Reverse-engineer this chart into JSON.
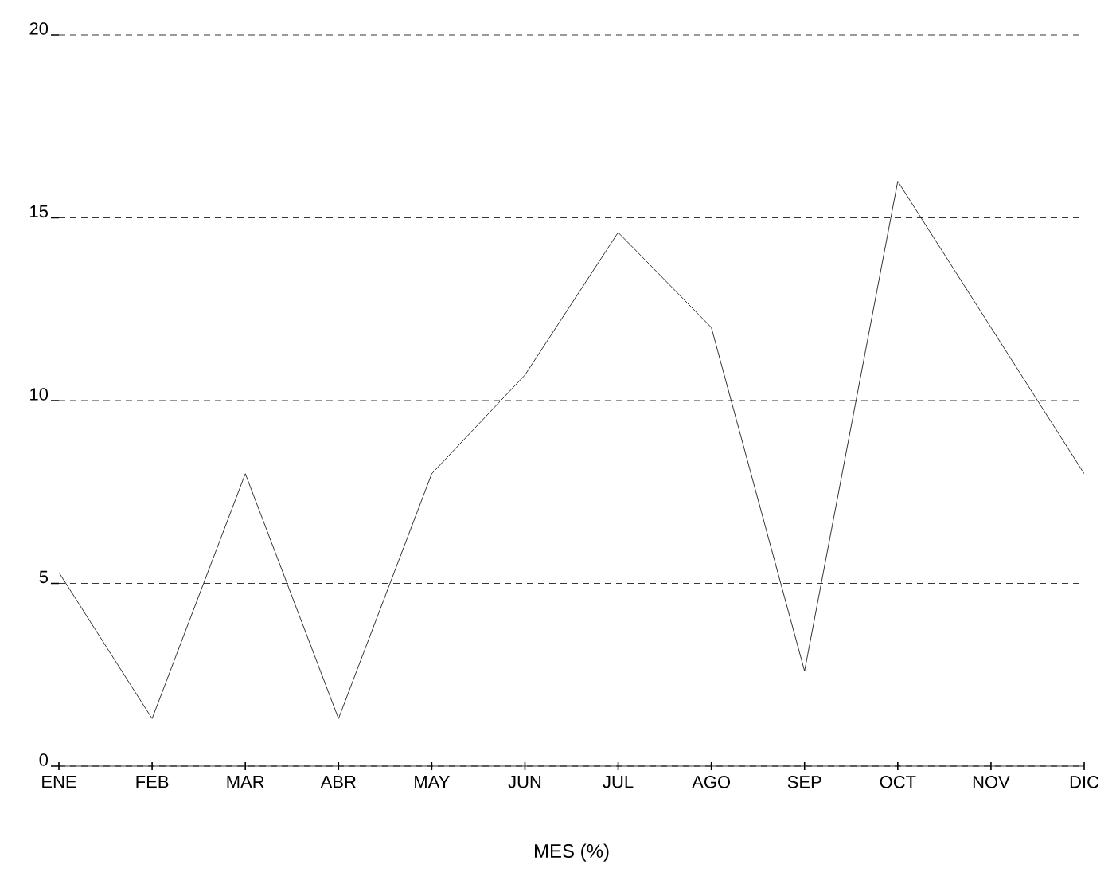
{
  "chart_data": {
    "type": "line",
    "xlabel": "MES (%)",
    "categories": [
      "ENE",
      "FEB",
      "MAR",
      "ABR",
      "MAY",
      "JUN",
      "JUL",
      "AGO",
      "SEP",
      "OCT",
      "NOV",
      "DIC"
    ],
    "values": [
      5.3,
      1.3,
      8,
      1.3,
      8,
      10.7,
      14.6,
      12,
      2.6,
      16,
      12,
      8
    ],
    "color": "#000000",
    "ylim": [
      0,
      20
    ],
    "yticks": [
      0,
      5,
      10,
      15,
      20
    ],
    "grid": "y",
    "marker": "none",
    "line_style": "solid"
  }
}
